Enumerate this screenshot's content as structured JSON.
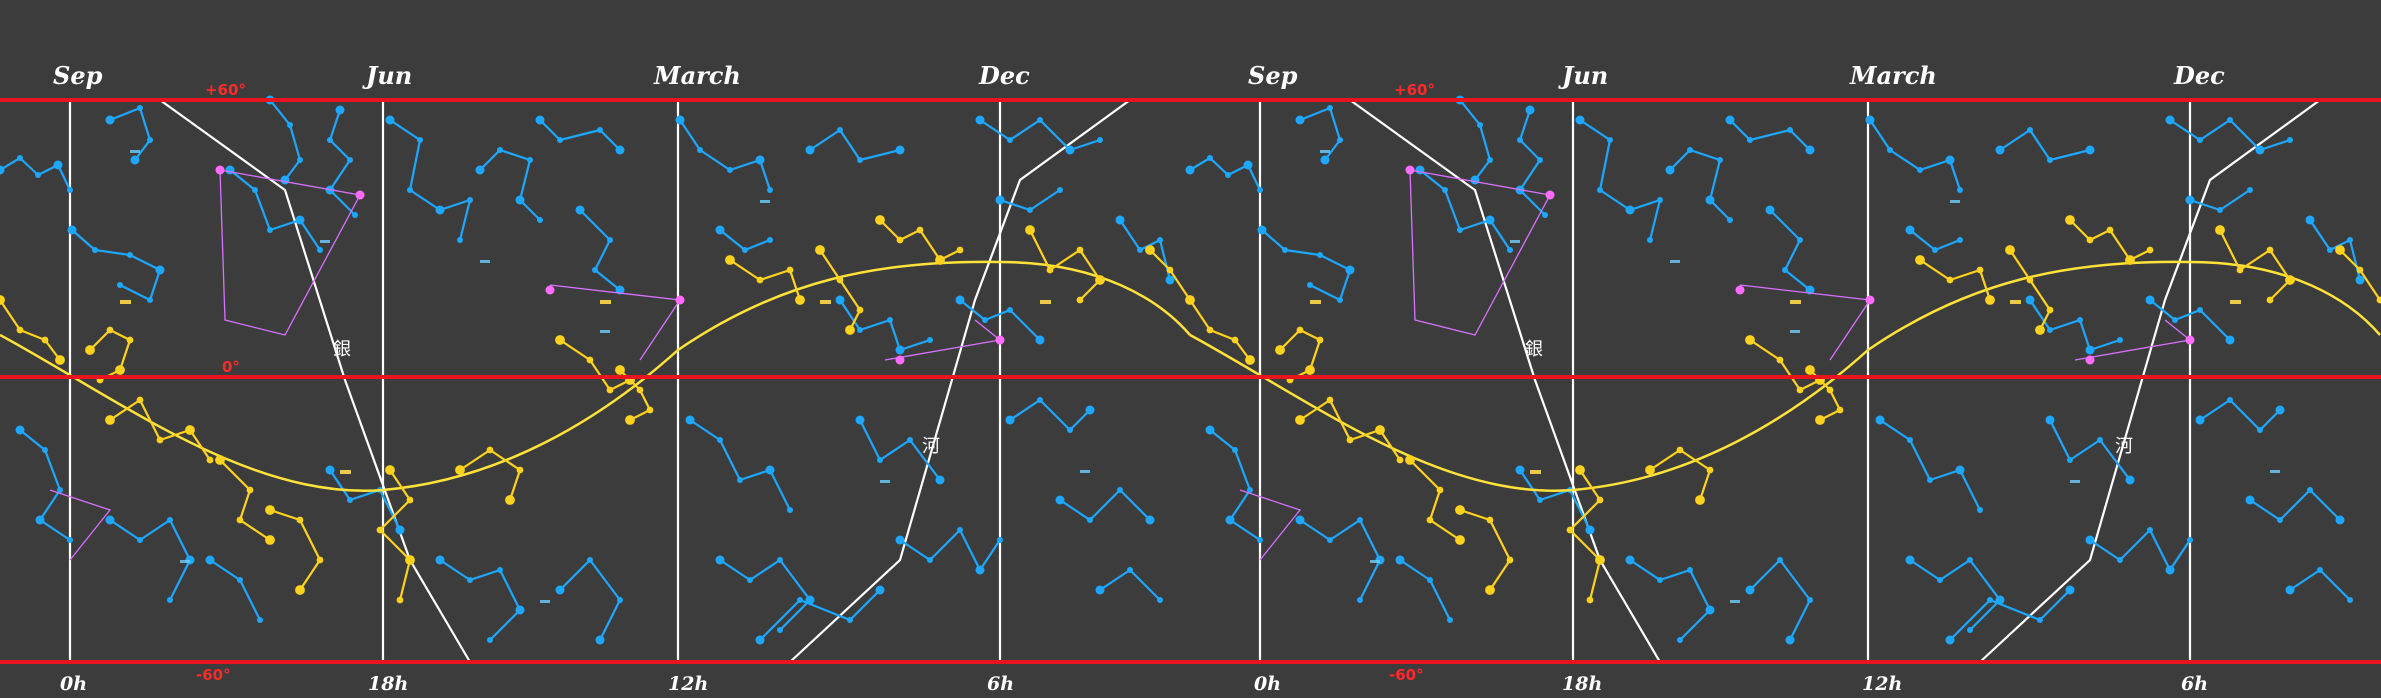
{
  "colors": {
    "background": "#3c3c3c",
    "boundary": "#e8141e",
    "grid": "#ffffff",
    "ecliptic": "#ffe23a",
    "zodiac_constellation": "#ffd21e",
    "constellation": "#1ea7ff",
    "lunar_mansion_link": "#d772ff",
    "lunar_mansion_star": "#ff6cff",
    "cjk_label": "#ffd84a",
    "blue_label": "#6fd0ff",
    "dec_label": "#ff2a2a"
  },
  "month_labels": [
    "Sep",
    "Jun",
    "March",
    "Dec",
    "Sep",
    "Jun",
    "March",
    "Dec"
  ],
  "hour_labels": [
    "0h",
    "18h",
    "12h",
    "6h",
    "0h",
    "18h",
    "12h",
    "6h"
  ],
  "dec_labels": {
    "top_left": "+60°",
    "top_right": "+60°",
    "middle": "0°",
    "bottom_left": "-60°",
    "bottom_right": "-60°"
  },
  "annotations": {
    "galaxy_left": "銀",
    "galaxy_right": "銀",
    "river_left": "河",
    "river_right": "河"
  },
  "icons": [
    "star-icon",
    "constellation-line-icon"
  ]
}
